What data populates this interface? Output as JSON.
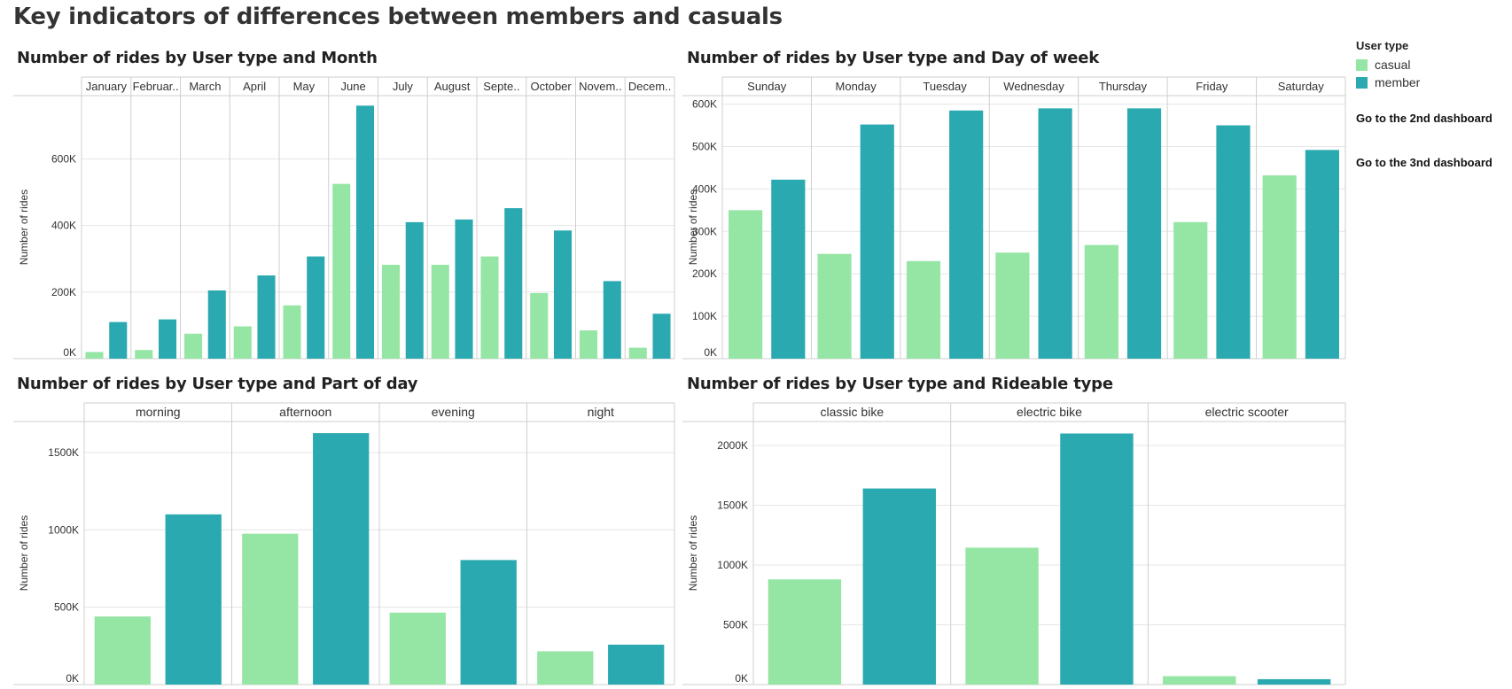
{
  "page": {
    "title": "Key indicators of differences between members and casuals"
  },
  "colors": {
    "casual": "#95e5a4",
    "member": "#2aa9b0",
    "grid": "#e6e6e6",
    "divider": "#cfcfcf"
  },
  "legend": {
    "title": "User type",
    "items": [
      {
        "label": "casual",
        "color": "#95e5a4"
      },
      {
        "label": "member",
        "color": "#2aa9b0"
      }
    ]
  },
  "links": {
    "second_dashboard": "Go to the 2nd dashboard",
    "third_dashboard": "Go to the 3nd dashboard"
  },
  "chart_data": [
    {
      "type": "bar",
      "title": "Number of rides by User type and Month",
      "ylabel": "Number of rides",
      "ylim": [
        0,
        790000
      ],
      "yticks": [
        0,
        200000,
        400000,
        600000
      ],
      "ytick_labels": [
        "0K",
        "200K",
        "400K",
        "600K"
      ],
      "categories": [
        "January",
        "Februar..",
        "March",
        "April",
        "May",
        "June",
        "July",
        "August",
        "Septe..",
        "October",
        "Novem..",
        "Decem.."
      ],
      "series": [
        {
          "name": "casual",
          "values": [
            20000,
            26000,
            75000,
            97000,
            160000,
            525000,
            282000,
            282000,
            307000,
            197000,
            85000,
            33000
          ]
        },
        {
          "name": "member",
          "values": [
            110000,
            118000,
            205000,
            250000,
            307000,
            760000,
            410000,
            418000,
            452000,
            385000,
            233000,
            135000
          ]
        }
      ]
    },
    {
      "type": "bar",
      "title": "Number of rides by User type and Day of week",
      "ylabel": "Number of rides",
      "ylim": [
        0,
        620000
      ],
      "yticks": [
        0,
        100000,
        200000,
        300000,
        400000,
        500000,
        600000
      ],
      "ytick_labels": [
        "0K",
        "100K",
        "200K",
        "300K",
        "400K",
        "500K",
        "600K"
      ],
      "categories": [
        "Sunday",
        "Monday",
        "Tuesday",
        "Wednesday",
        "Thursday",
        "Friday",
        "Saturday"
      ],
      "series": [
        {
          "name": "casual",
          "values": [
            350000,
            247000,
            230000,
            250000,
            268000,
            322000,
            432000
          ]
        },
        {
          "name": "member",
          "values": [
            422000,
            552000,
            585000,
            590000,
            590000,
            550000,
            492000
          ]
        }
      ]
    },
    {
      "type": "bar",
      "title": "Number of rides by User type and Part of day",
      "ylabel": "Number of rides",
      "ylim": [
        0,
        1700000
      ],
      "yticks": [
        0,
        500000,
        1000000,
        1500000
      ],
      "ytick_labels": [
        "0K",
        "500K",
        "1000K",
        "1500K"
      ],
      "categories": [
        "morning",
        "afternoon",
        "evening",
        "night"
      ],
      "series": [
        {
          "name": "casual",
          "values": [
            440000,
            975000,
            465000,
            215000
          ]
        },
        {
          "name": "member",
          "values": [
            1100000,
            1625000,
            805000,
            258000
          ]
        }
      ]
    },
    {
      "type": "bar",
      "title": "Number of rides by User type and Rideable type",
      "ylabel": "Number of rides",
      "ylim": [
        0,
        2200000
      ],
      "yticks": [
        0,
        500000,
        1000000,
        1500000,
        2000000
      ],
      "ytick_labels": [
        "0K",
        "500K",
        "1000K",
        "1500K",
        "2000K"
      ],
      "categories": [
        "classic bike",
        "electric bike",
        "electric scooter"
      ],
      "series": [
        {
          "name": "casual",
          "values": [
            880000,
            1145000,
            70000
          ]
        },
        {
          "name": "member",
          "values": [
            1640000,
            2100000,
            45000
          ]
        }
      ]
    }
  ]
}
